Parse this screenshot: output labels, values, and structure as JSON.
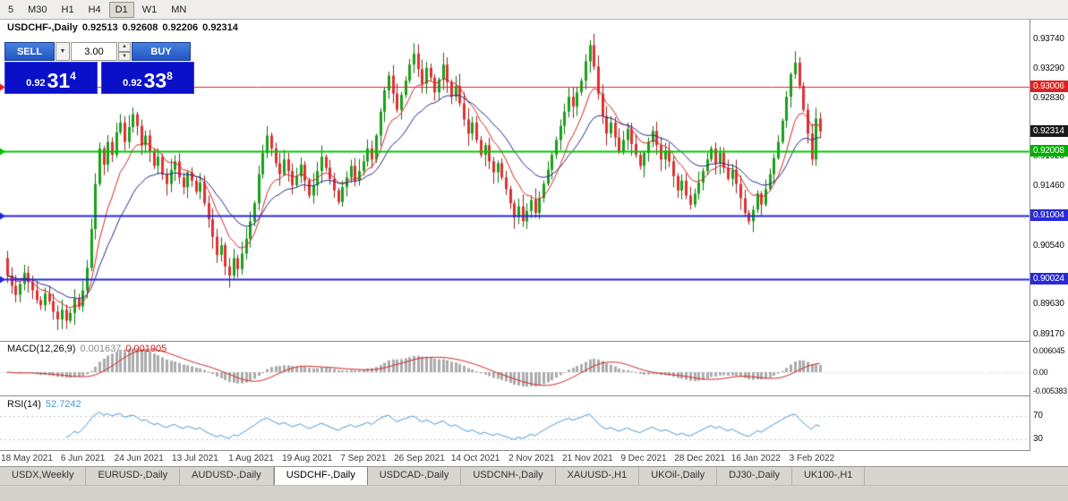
{
  "toolbar": {
    "timeframes": [
      "5",
      "M30",
      "H1",
      "H4",
      "D1",
      "W1",
      "MN"
    ],
    "active": "D1"
  },
  "chart_header": {
    "symbol_label": "USDCHF-,Daily",
    "open": "0.92513",
    "high": "0.92608",
    "low": "0.92206",
    "close": "0.92314"
  },
  "one_click": {
    "sell_label": "SELL",
    "buy_label": "BUY",
    "volume": "3.00",
    "bid": {
      "prefix": "0.92",
      "big": "31",
      "sup": "4"
    },
    "ask": {
      "prefix": "0.92",
      "big": "33",
      "sup": "8"
    }
  },
  "icons": {
    "chevron_down": "▼",
    "spinner_up": "▲",
    "spinner_down": "▼"
  },
  "price_axis": {
    "ticks": [
      "0.93740",
      "0.93290",
      "0.92830",
      "0.91920",
      "0.91460",
      "0.90540",
      "0.89630",
      "0.89170"
    ],
    "badges": [
      {
        "value": "0.93006",
        "color": "#e02020"
      },
      {
        "value": "0.92314",
        "color": "#1a1a1a"
      },
      {
        "value": "0.92008",
        "color": "#00b000"
      },
      {
        "value": "0.91004",
        "color": "#2a2ad8"
      },
      {
        "value": "0.90024",
        "color": "#2a2ad8"
      }
    ]
  },
  "macd": {
    "label": "MACD(12,26,9)",
    "main_value": "0.001637",
    "signal_value": "0.001905",
    "axis": [
      "0.006045",
      "0.00",
      "-0.005383"
    ]
  },
  "rsi": {
    "label": "RSI(14)",
    "value": "52.7242",
    "axis": [
      "70",
      "30"
    ]
  },
  "time_axis": {
    "dates": [
      "18 May 2021",
      "6 Jun 2021",
      "24 Jun 2021",
      "13 Jul 2021",
      "1 Aug 2021",
      "19 Aug 2021",
      "7 Sep 2021",
      "26 Sep 2021",
      "14 Oct 2021",
      "2 Nov 2021",
      "21 Nov 2021",
      "9 Dec 2021",
      "28 Dec 2021",
      "16 Jan 2022",
      "3 Feb 2022"
    ]
  },
  "tabs": {
    "items": [
      "USDX,Weekly",
      "EURUSD-,Daily",
      "AUDUSD-,Daily",
      "USDCHF-,Daily",
      "USDCAD-,Daily",
      "USDCNH-,Daily",
      "XAUUSD-,H1",
      "UKOil-,Daily",
      "DJ30-,Daily",
      "UK100-,H1"
    ],
    "active_index": 3
  },
  "chart_data": {
    "type": "candlestick",
    "symbol": "USDCHF",
    "timeframe": "Daily",
    "title": "USDCHF-,Daily",
    "y_range": [
      0.89122,
      0.93894
    ],
    "first_open": 0.9035,
    "closes": [
      0.9008,
      0.8992,
      0.8978,
      0.8995,
      0.9012,
      0.8998,
      0.8985,
      0.897,
      0.8962,
      0.898,
      0.8968,
      0.8952,
      0.894,
      0.8955,
      0.8938,
      0.895,
      0.8972,
      0.896,
      0.8985,
      0.902,
      0.908,
      0.915,
      0.9205,
      0.918,
      0.9215,
      0.9195,
      0.923,
      0.9245,
      0.9215,
      0.9238,
      0.9258,
      0.924,
      0.921,
      0.9225,
      0.92,
      0.9178,
      0.9192,
      0.9165,
      0.915,
      0.9172,
      0.9185,
      0.916,
      0.9145,
      0.9168,
      0.9155,
      0.9138,
      0.9152,
      0.912,
      0.9095,
      0.9068,
      0.904,
      0.9055,
      0.9022,
      0.9008,
      0.9035,
      0.9018,
      0.9042,
      0.9065,
      0.9092,
      0.912,
      0.9165,
      0.9198,
      0.9225,
      0.9205,
      0.9182,
      0.9165,
      0.9188,
      0.917,
      0.9148,
      0.9162,
      0.918,
      0.9155,
      0.9132,
      0.9148,
      0.917,
      0.9192,
      0.9175,
      0.9158,
      0.914,
      0.9122,
      0.9145,
      0.916,
      0.9178,
      0.9155,
      0.917,
      0.9185,
      0.9205,
      0.9188,
      0.9225,
      0.9262,
      0.9295,
      0.9318,
      0.929,
      0.9265,
      0.9288,
      0.931,
      0.9335,
      0.9352,
      0.9328,
      0.9305,
      0.933,
      0.9315,
      0.9292,
      0.9312,
      0.9335,
      0.9308,
      0.9285,
      0.9302,
      0.9275,
      0.925,
      0.9228,
      0.9245,
      0.9218,
      0.9195,
      0.921,
      0.9185,
      0.9168,
      0.9182,
      0.916,
      0.9142,
      0.912,
      0.9098,
      0.9115,
      0.9092,
      0.9108,
      0.9125,
      0.9105,
      0.9128,
      0.915,
      0.9172,
      0.9195,
      0.9218,
      0.924,
      0.9262,
      0.9285,
      0.927,
      0.9292,
      0.931,
      0.934,
      0.9365,
      0.9332,
      0.929,
      0.9255,
      0.9228,
      0.9245,
      0.9222,
      0.92,
      0.9218,
      0.9235,
      0.9212,
      0.9195,
      0.9178,
      0.9198,
      0.9215,
      0.9232,
      0.921,
      0.9188,
      0.9202,
      0.9185,
      0.9162,
      0.914,
      0.9155,
      0.9132,
      0.9118,
      0.9135,
      0.9152,
      0.917,
      0.9188,
      0.9205,
      0.9182,
      0.9198,
      0.9175,
      0.9158,
      0.9172,
      0.915,
      0.9128,
      0.9105,
      0.9092,
      0.911,
      0.9135,
      0.9118,
      0.9142,
      0.9165,
      0.919,
      0.9215,
      0.9248,
      0.9285,
      0.932,
      0.9338,
      0.9302,
      0.9265,
      0.9228,
      0.9188,
      0.92513,
      0.92314
    ],
    "last_candle": {
      "open": 0.92513,
      "high": 0.92608,
      "low": 0.92206,
      "close": 0.92314
    },
    "spike_highs": {
      "97": 0.9368,
      "139": 0.9373
    },
    "h_lines": [
      {
        "value": 0.93006,
        "color": "#e02020",
        "width": 1
      },
      {
        "value": 0.92008,
        "color": "#00c400",
        "width": 2
      },
      {
        "value": 0.91004,
        "color": "#2626d4",
        "width": 2
      },
      {
        "value": 0.90024,
        "color": "#2626d4",
        "width": 2
      }
    ],
    "moving_averages": [
      {
        "period": 9,
        "color": "#d42424"
      },
      {
        "period": 20,
        "color": "#26268c"
      }
    ],
    "indicators": {
      "macd": {
        "params": [
          12,
          26,
          9
        ],
        "histogram_color": "#ababab",
        "signal_color": "#d42424",
        "axis_range": [
          -0.005383,
          0.006045
        ]
      },
      "rsi": {
        "params": [
          14
        ],
        "line_color": "#4796d2",
        "levels": [
          70,
          30
        ]
      }
    },
    "candle_colors": {
      "up": "#19a119",
      "up_outline": "#0c730c",
      "down": "#e03030",
      "down_outline": "#992020"
    }
  }
}
